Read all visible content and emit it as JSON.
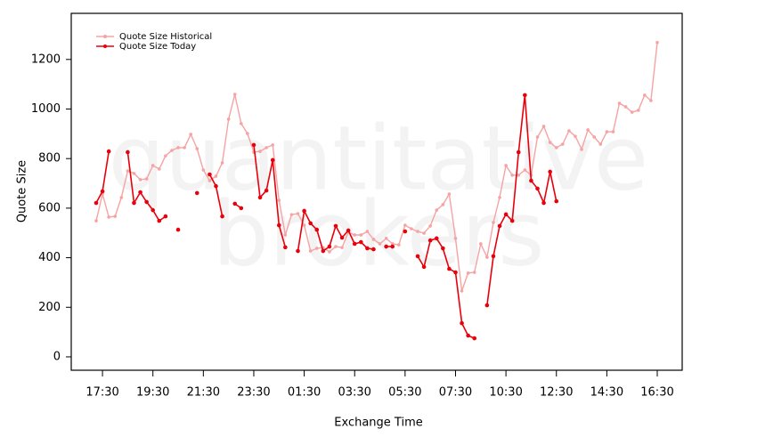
{
  "chart_data": {
    "type": "line",
    "watermark": [
      "quantitative",
      "brokers"
    ],
    "x_label": "Exchange Time",
    "y_label": "Quote Size",
    "categories": [
      null,
      "17:30",
      null,
      null,
      null,
      null,
      null,
      null,
      null,
      "19:30",
      null,
      null,
      null,
      null,
      null,
      null,
      null,
      "21:30",
      null,
      null,
      null,
      null,
      null,
      null,
      null,
      "23:30",
      null,
      null,
      null,
      null,
      null,
      null,
      null,
      "01:30",
      null,
      null,
      null,
      null,
      null,
      null,
      null,
      "03:30",
      null,
      null,
      null,
      null,
      null,
      null,
      null,
      "05:30",
      null,
      null,
      null,
      null,
      null,
      null,
      null,
      "07:30",
      null,
      null,
      null,
      null,
      null,
      null,
      null,
      "10:30",
      null,
      null,
      null,
      null,
      null,
      null,
      null,
      "12:30",
      null,
      null,
      null,
      null,
      null,
      null,
      null,
      "14:30",
      null,
      null,
      null,
      null,
      null,
      null,
      null,
      "16:30"
    ],
    "series": [
      {
        "name": "Quote Size Historical",
        "color": "#f5a3a3",
        "values": [
          549,
          657,
          564,
          567,
          643,
          750,
          740,
          715,
          718,
          772,
          758,
          811,
          833,
          844,
          844,
          898,
          840,
          754,
          711,
          729,
          783,
          959,
          1059,
          941,
          901,
          826,
          829,
          844,
          855,
          632,
          492,
          574,
          578,
          531,
          427,
          438,
          441,
          424,
          445,
          441,
          503,
          492,
          492,
          506,
          474,
          456,
          478,
          456,
          452,
          531,
          517,
          506,
          499,
          528,
          592,
          614,
          657,
          478,
          266,
          338,
          341,
          456,
          402,
          542,
          643,
          772,
          733,
          733,
          754,
          733,
          887,
          930,
          865,
          844,
          858,
          912,
          890,
          837,
          916,
          887,
          858,
          908,
          908,
          1023,
          1009,
          987,
          995,
          1056,
          1034,
          1268
        ]
      },
      {
        "name": "Quote Size Today",
        "color": "#e8000b",
        "values": [
          621,
          668,
          829,
          null,
          null,
          826,
          621,
          664,
          625,
          592,
          549,
          567,
          null,
          513,
          null,
          null,
          661,
          null,
          736,
          689,
          567,
          null,
          618,
          600,
          null,
          855,
          643,
          671,
          794,
          531,
          442,
          null,
          427,
          589,
          539,
          513,
          427,
          445,
          528,
          481,
          510,
          456,
          463,
          438,
          434,
          null,
          445,
          445,
          null,
          506,
          null,
          406,
          363,
          470,
          478,
          438,
          355,
          341,
          136,
          86,
          75,
          null,
          208,
          406,
          528,
          575,
          549,
          826,
          1056,
          711,
          679,
          621,
          747,
          628,
          null,
          null,
          null,
          null,
          null,
          null,
          null,
          null,
          null,
          null,
          null,
          null,
          null,
          null,
          null,
          null
        ]
      }
    ],
    "ylim": [
      -54,
      1386
    ],
    "yticks": [
      0,
      200,
      400,
      600,
      800,
      1000,
      1200
    ],
    "legend": "top-left"
  }
}
